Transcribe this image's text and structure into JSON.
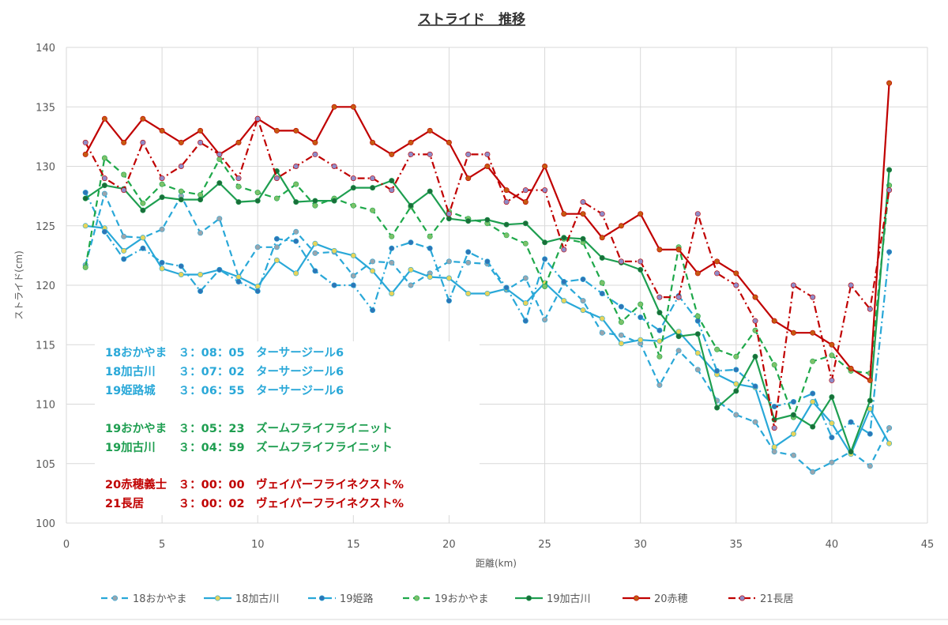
{
  "chart_data": {
    "type": "line",
    "title": "ストライド　推移",
    "xlabel": "距離(km)",
    "ylabel": "ストライド(cm)",
    "xlim": [
      0,
      45
    ],
    "ylim": [
      100,
      140
    ],
    "xticks": [
      0,
      5,
      10,
      15,
      20,
      25,
      30,
      35,
      40,
      45
    ],
    "yticks": [
      100,
      105,
      110,
      115,
      120,
      125,
      130,
      135,
      140
    ],
    "grid": true,
    "legend_position": "bottom",
    "series": [
      {
        "name": "18おかやま",
        "color": "#29a8d8",
        "marker_color": "#9aa5ad",
        "dash": "8,5",
        "values": [
          [
            1,
            121.7
          ],
          [
            2,
            127.7
          ],
          [
            3,
            124.1
          ],
          [
            4,
            124.0
          ],
          [
            5,
            124.7
          ],
          [
            6,
            127.5
          ],
          [
            7,
            124.4
          ],
          [
            8,
            125.6
          ],
          [
            9,
            120.7
          ],
          [
            10,
            123.2
          ],
          [
            11,
            123.2
          ],
          [
            12,
            124.5
          ],
          [
            13,
            122.7
          ],
          [
            14,
            122.8
          ],
          [
            15,
            120.8
          ],
          [
            16,
            122.0
          ],
          [
            17,
            121.9
          ],
          [
            18,
            120.0
          ],
          [
            19,
            121.0
          ],
          [
            20,
            122.0
          ],
          [
            21,
            121.9
          ],
          [
            22,
            121.8
          ],
          [
            23,
            119.6
          ],
          [
            24,
            120.6
          ],
          [
            25,
            117.1
          ],
          [
            26,
            120.2
          ],
          [
            27,
            118.7
          ],
          [
            28,
            116.0
          ],
          [
            29,
            115.8
          ],
          [
            30,
            115.1
          ],
          [
            31,
            111.6
          ],
          [
            32,
            114.5
          ],
          [
            33,
            112.9
          ],
          [
            34,
            110.3
          ],
          [
            35,
            109.1
          ],
          [
            36,
            108.5
          ],
          [
            37,
            106.0
          ],
          [
            38,
            105.7
          ],
          [
            39,
            104.3
          ],
          [
            40,
            105.1
          ],
          [
            41,
            106.0
          ],
          [
            42,
            104.8
          ],
          [
            43,
            108.0
          ]
        ]
      },
      {
        "name": "18加古川",
        "color": "#29a8d8",
        "marker_color": "#e8d45a",
        "dash": "",
        "values": [
          [
            1,
            125.0
          ],
          [
            2,
            124.8
          ],
          [
            3,
            122.9
          ],
          [
            4,
            124.0
          ],
          [
            5,
            121.4
          ],
          [
            6,
            120.9
          ],
          [
            7,
            120.9
          ],
          [
            8,
            121.3
          ],
          [
            9,
            120.7
          ],
          [
            10,
            119.9
          ],
          [
            11,
            122.1
          ],
          [
            12,
            121.0
          ],
          [
            13,
            123.5
          ],
          [
            14,
            122.9
          ],
          [
            15,
            122.5
          ],
          [
            16,
            121.2
          ],
          [
            17,
            119.3
          ],
          [
            18,
            121.3
          ],
          [
            19,
            120.7
          ],
          [
            20,
            120.6
          ],
          [
            21,
            119.3
          ],
          [
            22,
            119.3
          ],
          [
            23,
            119.7
          ],
          [
            24,
            118.5
          ],
          [
            25,
            120.2
          ],
          [
            26,
            118.7
          ],
          [
            27,
            117.9
          ],
          [
            28,
            117.2
          ],
          [
            29,
            115.1
          ],
          [
            30,
            115.4
          ],
          [
            31,
            115.3
          ],
          [
            32,
            116.1
          ],
          [
            33,
            114.3
          ],
          [
            34,
            112.5
          ],
          [
            35,
            111.7
          ],
          [
            36,
            111.4
          ],
          [
            37,
            106.4
          ],
          [
            38,
            107.5
          ],
          [
            39,
            110.2
          ],
          [
            40,
            108.4
          ],
          [
            41,
            105.8
          ],
          [
            42,
            109.6
          ],
          [
            43,
            106.7
          ]
        ]
      },
      {
        "name": "19姫路",
        "color": "#29a8d8",
        "marker_color": "#2e75b6",
        "dash": "10,4,2,4",
        "values": [
          [
            1,
            127.8
          ],
          [
            2,
            124.5
          ],
          [
            3,
            122.2
          ],
          [
            4,
            123.1
          ],
          [
            5,
            121.9
          ],
          [
            6,
            121.6
          ],
          [
            7,
            119.5
          ],
          [
            8,
            121.3
          ],
          [
            9,
            120.3
          ],
          [
            10,
            119.5
          ],
          [
            11,
            123.9
          ],
          [
            12,
            123.7
          ],
          [
            13,
            121.2
          ],
          [
            14,
            120.0
          ],
          [
            15,
            120.0
          ],
          [
            16,
            117.9
          ],
          [
            17,
            123.1
          ],
          [
            18,
            123.6
          ],
          [
            19,
            123.1
          ],
          [
            20,
            118.7
          ],
          [
            21,
            122.8
          ],
          [
            22,
            122.0
          ],
          [
            23,
            119.8
          ],
          [
            24,
            117.0
          ],
          [
            25,
            122.2
          ],
          [
            26,
            120.3
          ],
          [
            27,
            120.5
          ],
          [
            28,
            119.3
          ],
          [
            29,
            118.2
          ],
          [
            30,
            117.3
          ],
          [
            31,
            116.2
          ],
          [
            32,
            119.1
          ],
          [
            33,
            117.0
          ],
          [
            34,
            112.8
          ],
          [
            35,
            112.9
          ],
          [
            36,
            111.5
          ],
          [
            37,
            109.8
          ],
          [
            38,
            110.2
          ],
          [
            39,
            110.9
          ],
          [
            40,
            107.2
          ],
          [
            41,
            108.5
          ],
          [
            42,
            107.5
          ],
          [
            43,
            122.8
          ]
        ]
      },
      {
        "name": "19おかやま",
        "color": "#1ea84a",
        "marker_color": "#7cc16a",
        "dash": "8,5",
        "values": [
          [
            1,
            121.5
          ],
          [
            2,
            130.7
          ],
          [
            3,
            129.3
          ],
          [
            4,
            126.9
          ],
          [
            5,
            128.5
          ],
          [
            6,
            127.9
          ],
          [
            7,
            127.6
          ],
          [
            8,
            130.6
          ],
          [
            9,
            128.3
          ],
          [
            10,
            127.8
          ],
          [
            11,
            127.3
          ],
          [
            12,
            128.5
          ],
          [
            13,
            126.7
          ],
          [
            14,
            127.3
          ],
          [
            15,
            126.7
          ],
          [
            16,
            126.3
          ],
          [
            17,
            124.1
          ],
          [
            18,
            126.6
          ],
          [
            19,
            124.1
          ],
          [
            20,
            126.2
          ],
          [
            21,
            125.6
          ],
          [
            22,
            125.2
          ],
          [
            23,
            124.2
          ],
          [
            24,
            123.5
          ],
          [
            25,
            119.9
          ],
          [
            26,
            123.9
          ],
          [
            27,
            123.6
          ],
          [
            28,
            120.2
          ],
          [
            29,
            116.9
          ],
          [
            30,
            118.4
          ],
          [
            31,
            114.0
          ],
          [
            32,
            123.2
          ],
          [
            33,
            117.4
          ],
          [
            34,
            114.6
          ],
          [
            35,
            114.0
          ],
          [
            36,
            116.2
          ],
          [
            37,
            113.3
          ],
          [
            38,
            108.9
          ],
          [
            39,
            113.6
          ],
          [
            40,
            114.1
          ],
          [
            41,
            112.8
          ],
          [
            42,
            112.6
          ],
          [
            43,
            128.4
          ]
        ]
      },
      {
        "name": "19加古川",
        "color": "#1e9e50",
        "marker_color": "#1a6e3a",
        "dash": "",
        "values": [
          [
            1,
            127.3
          ],
          [
            2,
            128.4
          ],
          [
            3,
            128.1
          ],
          [
            4,
            126.3
          ],
          [
            5,
            127.4
          ],
          [
            6,
            127.2
          ],
          [
            7,
            127.2
          ],
          [
            8,
            128.6
          ],
          [
            9,
            127.0
          ],
          [
            10,
            127.1
          ],
          [
            11,
            129.6
          ],
          [
            12,
            127.0
          ],
          [
            13,
            127.1
          ],
          [
            14,
            127.1
          ],
          [
            15,
            128.2
          ],
          [
            16,
            128.2
          ],
          [
            17,
            128.8
          ],
          [
            18,
            126.7
          ],
          [
            19,
            127.9
          ],
          [
            20,
            125.6
          ],
          [
            21,
            125.4
          ],
          [
            22,
            125.5
          ],
          [
            23,
            125.1
          ],
          [
            24,
            125.2
          ],
          [
            25,
            123.6
          ],
          [
            26,
            124.0
          ],
          [
            27,
            123.9
          ],
          [
            28,
            122.3
          ],
          [
            29,
            121.9
          ],
          [
            30,
            121.3
          ],
          [
            31,
            117.7
          ],
          [
            32,
            115.7
          ],
          [
            33,
            115.9
          ],
          [
            34,
            109.7
          ],
          [
            35,
            111.1
          ],
          [
            36,
            114.0
          ],
          [
            37,
            108.7
          ],
          [
            38,
            109.1
          ],
          [
            39,
            108.1
          ],
          [
            40,
            110.6
          ],
          [
            41,
            106.0
          ],
          [
            42,
            110.3
          ],
          [
            43,
            129.7
          ]
        ]
      },
      {
        "name": "20赤穂",
        "color": "#c00000",
        "marker_color": "#c55a11",
        "dash": "",
        "values": [
          [
            1,
            131.0
          ],
          [
            2,
            134.0
          ],
          [
            3,
            132.0
          ],
          [
            4,
            134.0
          ],
          [
            5,
            133.0
          ],
          [
            6,
            132.0
          ],
          [
            7,
            133.0
          ],
          [
            8,
            131.0
          ],
          [
            9,
            132.0
          ],
          [
            10,
            134.0
          ],
          [
            11,
            133.0
          ],
          [
            12,
            133.0
          ],
          [
            13,
            132.0
          ],
          [
            14,
            135.0
          ],
          [
            15,
            135.0
          ],
          [
            16,
            132.0
          ],
          [
            17,
            131.0
          ],
          [
            18,
            132.0
          ],
          [
            19,
            133.0
          ],
          [
            20,
            132.0
          ],
          [
            21,
            129.0
          ],
          [
            22,
            130.0
          ],
          [
            23,
            128.0
          ],
          [
            24,
            127.0
          ],
          [
            25,
            130.0
          ],
          [
            26,
            126.0
          ],
          [
            27,
            126.0
          ],
          [
            28,
            124.0
          ],
          [
            29,
            125.0
          ],
          [
            30,
            126.0
          ],
          [
            31,
            123.0
          ],
          [
            32,
            123.0
          ],
          [
            33,
            121.0
          ],
          [
            34,
            122.0
          ],
          [
            35,
            121.0
          ],
          [
            36,
            119.0
          ],
          [
            37,
            117.0
          ],
          [
            38,
            116.0
          ],
          [
            39,
            116.0
          ],
          [
            40,
            115.0
          ],
          [
            41,
            113.0
          ],
          [
            42,
            112.0
          ],
          [
            43,
            137.0
          ]
        ]
      },
      {
        "name": "21長居",
        "color": "#c00000",
        "marker_color": "#8e8cc8",
        "dash": "9,4,2,4",
        "values": [
          [
            1,
            132.0
          ],
          [
            2,
            129.0
          ],
          [
            3,
            128.0
          ],
          [
            4,
            132.0
          ],
          [
            5,
            129.0
          ],
          [
            6,
            130.0
          ],
          [
            7,
            132.0
          ],
          [
            8,
            131.0
          ],
          [
            9,
            129.0
          ],
          [
            10,
            134.0
          ],
          [
            11,
            129.0
          ],
          [
            12,
            130.0
          ],
          [
            13,
            131.0
          ],
          [
            14,
            130.0
          ],
          [
            15,
            129.0
          ],
          [
            16,
            129.0
          ],
          [
            17,
            128.0
          ],
          [
            18,
            131.0
          ],
          [
            19,
            131.0
          ],
          [
            20,
            126.0
          ],
          [
            21,
            131.0
          ],
          [
            22,
            131.0
          ],
          [
            23,
            127.0
          ],
          [
            24,
            128.0
          ],
          [
            25,
            128.0
          ],
          [
            26,
            123.0
          ],
          [
            27,
            127.0
          ],
          [
            28,
            126.0
          ],
          [
            29,
            122.0
          ],
          [
            30,
            122.0
          ],
          [
            31,
            119.0
          ],
          [
            32,
            119.0
          ],
          [
            33,
            126.0
          ],
          [
            34,
            121.0
          ],
          [
            35,
            120.0
          ],
          [
            36,
            117.0
          ],
          [
            37,
            108.0
          ],
          [
            38,
            120.0
          ],
          [
            39,
            119.0
          ],
          [
            40,
            112.0
          ],
          [
            41,
            120.0
          ],
          [
            42,
            118.0
          ],
          [
            43,
            128.0
          ]
        ]
      }
    ],
    "annotations": [
      {
        "text": "18おかやま　３：08：05　ターサージール6",
        "color": "#29a8d8"
      },
      {
        "text": "18加古川　　３：07：02　ターサージール6",
        "color": "#29a8d8"
      },
      {
        "text": "19姫路城　　３：06：55　ターサージール6",
        "color": "#29a8d8"
      },
      {
        "text": "19おかやま　３：05：23　ズームフライフライニット",
        "color": "#1e9e50"
      },
      {
        "text": "19加古川　　３：04：59　ズームフライフライニット",
        "color": "#1e9e50"
      },
      {
        "text": "20赤穂義士　３：00：00　ヴェイパーフライネクスト%",
        "color": "#c00000"
      },
      {
        "text": "21長居　　　３：00：02　ヴェイパーフライネクスト%",
        "color": "#c00000"
      }
    ]
  }
}
